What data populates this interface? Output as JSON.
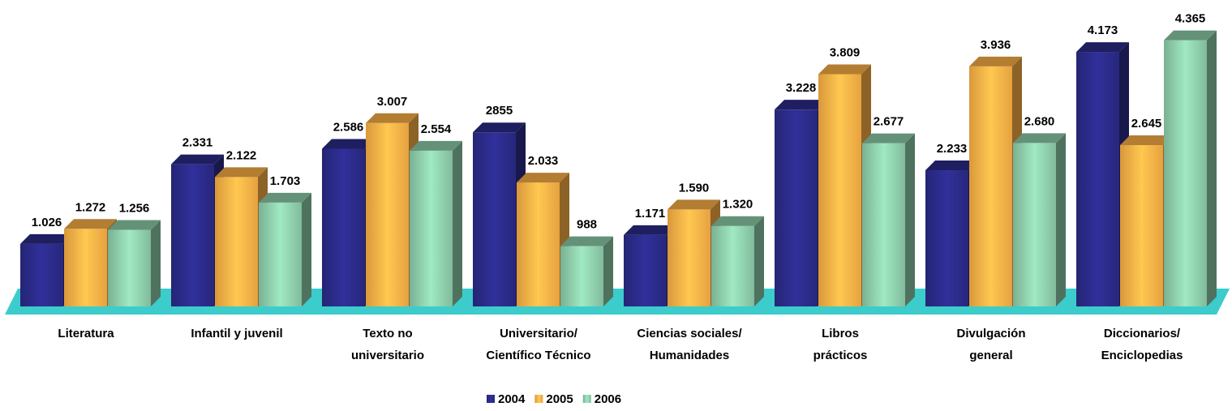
{
  "chart_data": {
    "type": "bar3d",
    "categories": [
      "Literatura",
      "Infantil y juvenil",
      "Texto no\nuniversitario",
      "Universitario/\nCientífico Técnico",
      "Ciencias sociales/\nHumanidades",
      "Libros\nprácticos",
      "Divulgación\ngeneral",
      "Diccionarios/\nEnciclopedias"
    ],
    "series": [
      {
        "name": "2004",
        "color": "#2b2b8a",
        "values": [
          1026,
          2331,
          2586,
          2855,
          1171,
          3228,
          2233,
          4173
        ],
        "value_labels": [
          "1.026",
          "2.331",
          "2.586",
          "2855",
          "1.171",
          "3.228",
          "2.233",
          "4.173"
        ]
      },
      {
        "name": "2005",
        "color": "#ffb347",
        "values": [
          1272,
          2122,
          3007,
          2033,
          1590,
          3809,
          3936,
          2645
        ],
        "value_labels": [
          "1.272",
          "2.122",
          "3.007",
          "2.033",
          "1.590",
          "3.809",
          "3.936",
          "2.645"
        ]
      },
      {
        "name": "2006",
        "color": "#8fd0ad",
        "values": [
          1256,
          1703,
          2554,
          988,
          1320,
          2677,
          2680,
          4365
        ],
        "value_labels": [
          "1.256",
          "1.703",
          "2.554",
          "988",
          "1.320",
          "2.677",
          "2.680",
          "4.365"
        ]
      }
    ],
    "ylim": [
      0,
      4400
    ],
    "floor_color": "#3ccccc"
  }
}
